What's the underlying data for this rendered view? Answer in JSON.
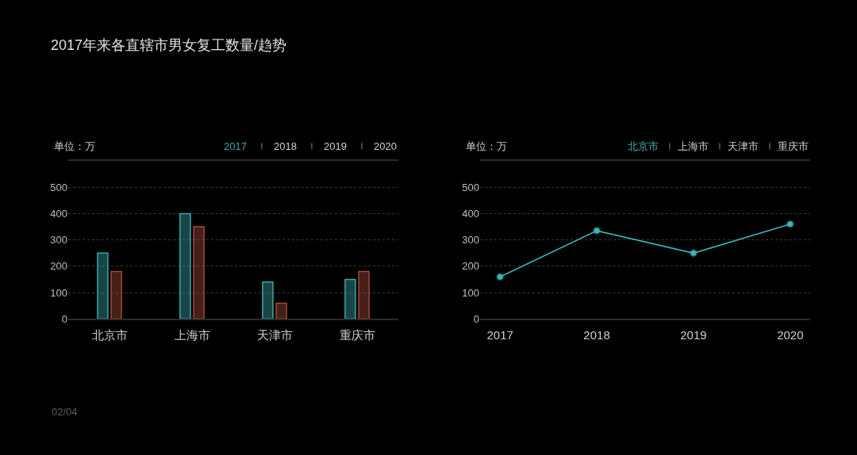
{
  "chart_data": [
    {
      "type": "bar",
      "title": "2017年来各直辖市男女复工数量/趋势",
      "ylabel": "单位：万",
      "categories": [
        "北京市",
        "上海市",
        "天津市",
        "重庆市"
      ],
      "series": [
        {
          "color": "#3aa8a8",
          "values": [
            250,
            400,
            140,
            150
          ]
        },
        {
          "color": "#a4493a",
          "values": [
            180,
            350,
            60,
            180
          ]
        }
      ],
      "ylim": [
        0,
        600
      ],
      "yticks": [
        0,
        100,
        200,
        300,
        400,
        500
      ],
      "grid": "y",
      "annotations": [
        "2017",
        "2018",
        "2019",
        "2020",
        "02/04"
      ]
    },
    {
      "type": "line",
      "ylabel": "单位：万",
      "categories": [
        "2017",
        "2018",
        "2019",
        "2020"
      ],
      "series": [
        {
          "name": "北京市",
          "color": "#3bb4b4",
          "values": [
            160,
            335,
            250,
            360
          ]
        }
      ],
      "ylim": [
        0,
        600
      ],
      "yticks": [
        0,
        100,
        200,
        300,
        400,
        500
      ],
      "grid": "y",
      "marker": "circle",
      "line_style": "solid",
      "legend": "top right",
      "annotations": [
        "上海市",
        "天津市",
        "重庆市"
      ]
    }
  ]
}
